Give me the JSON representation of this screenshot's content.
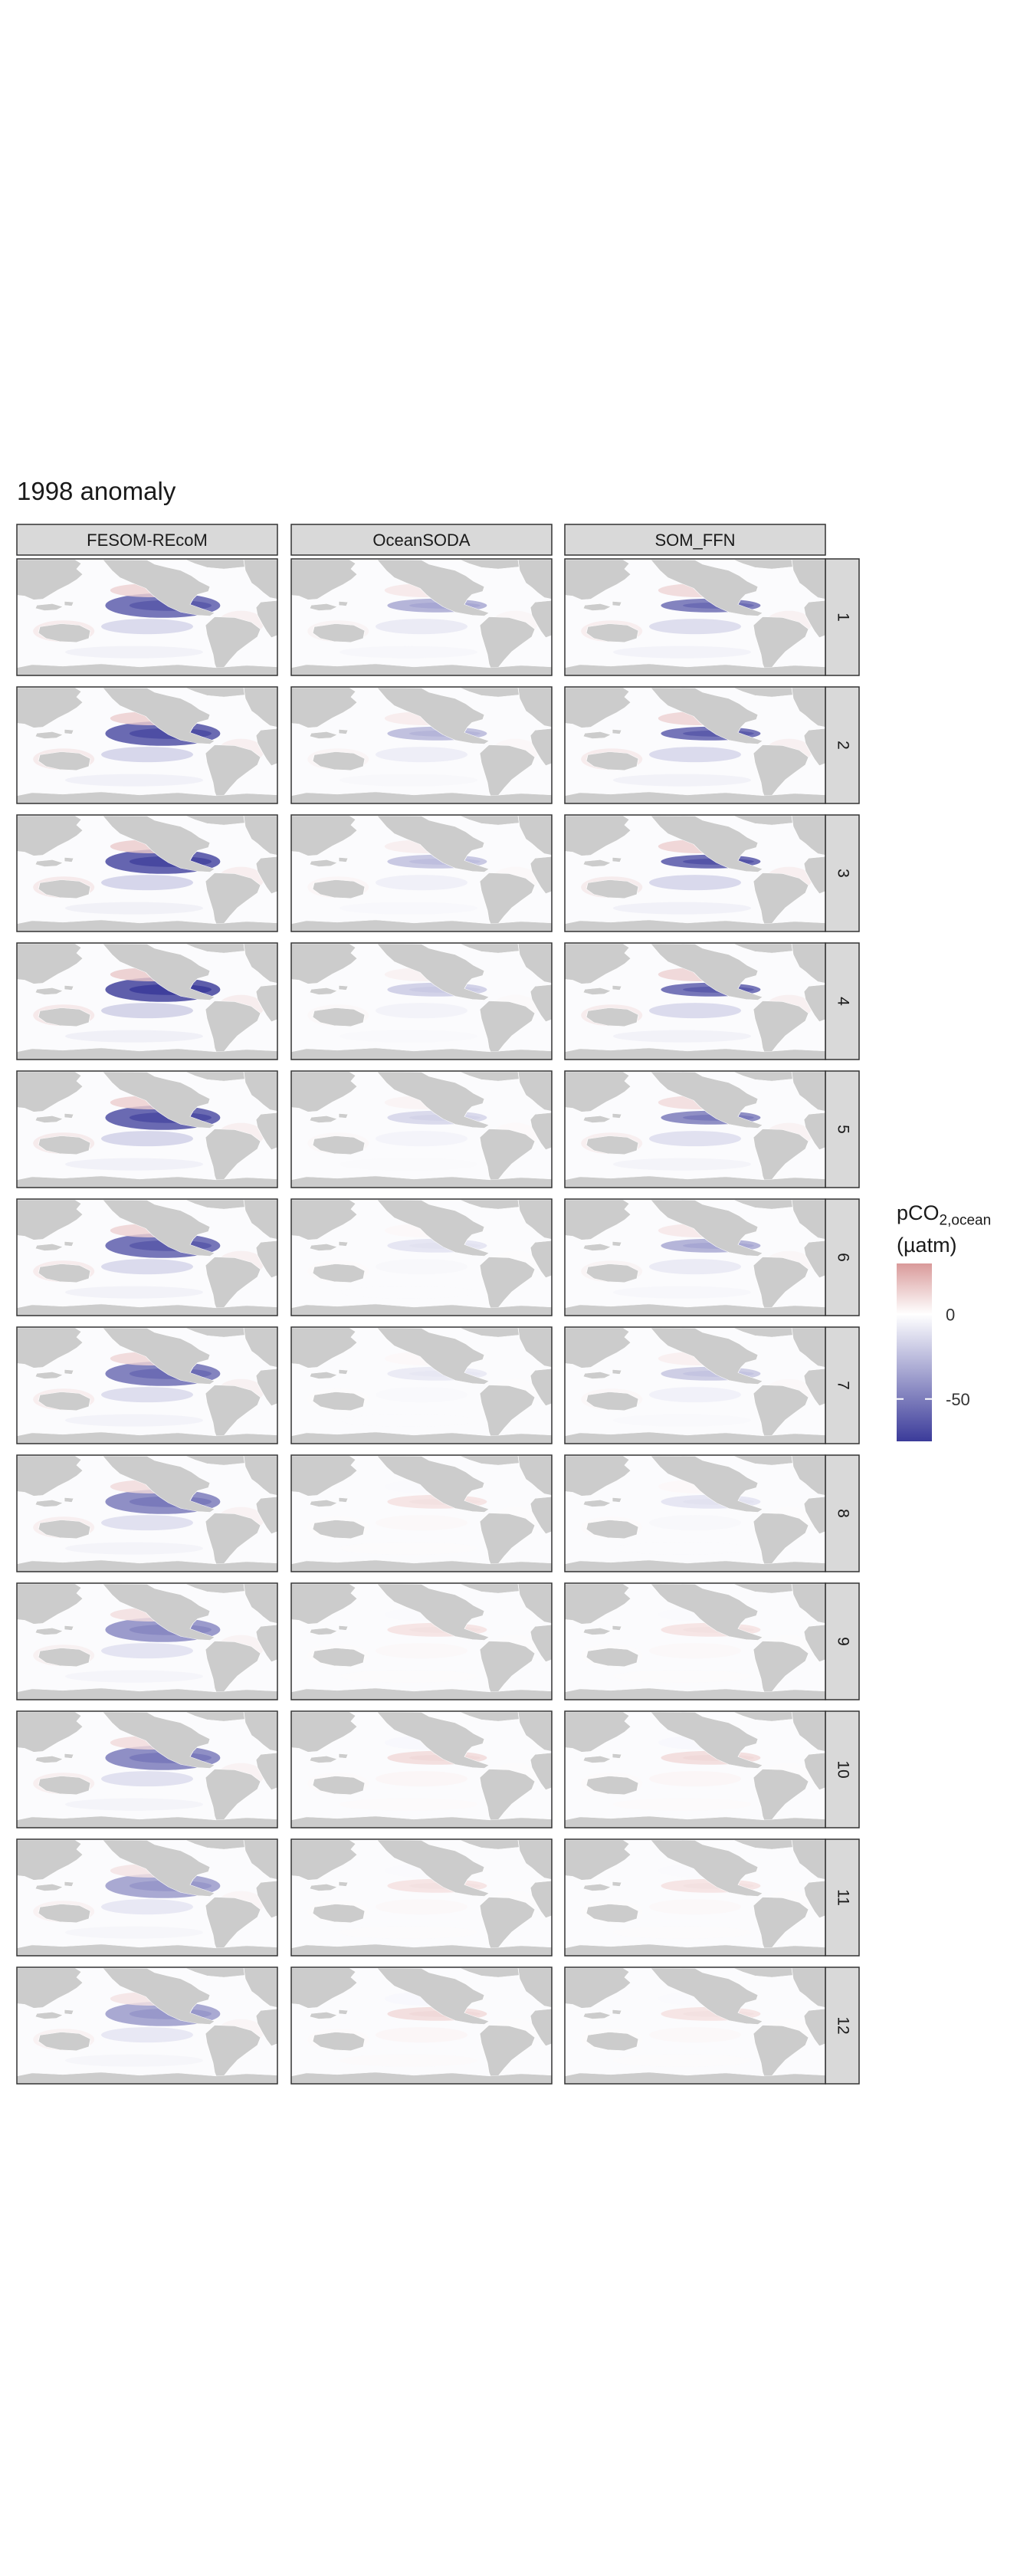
{
  "chart_data": {
    "type": "heatmap",
    "title": "1998 anomaly",
    "facet_columns": [
      "FESOM-REcoM",
      "OceanSODA",
      "SOM_FFN"
    ],
    "facet_rows": [
      "1",
      "2",
      "3",
      "4",
      "5",
      "6",
      "7",
      "8",
      "9",
      "10",
      "11",
      "12"
    ],
    "legend": {
      "title_main": "pCO",
      "title_sub": "2,ocean",
      "title_units": "(µatm)",
      "ticks": [
        0,
        -50
      ],
      "tick_labels": [
        "0",
        "-50"
      ],
      "range": [
        -75,
        30
      ],
      "colors": {
        "low": "#3b3b9a",
        "mid": "#ffffff",
        "high": "#d99a9a"
      },
      "placement": "right"
    },
    "land_color": "#cccccc",
    "equatorial_pacific_anomaly_min": {
      "FESOM-REcoM": [
        -55,
        -60,
        -62,
        -65,
        -60,
        -55,
        -50,
        -45,
        -40,
        -45,
        -35,
        -35
      ],
      "OceanSODA": [
        -30,
        -25,
        -22,
        -18,
        -15,
        -10,
        -8,
        8,
        8,
        10,
        8,
        10
      ],
      "SOM_FFN": [
        -50,
        -55,
        -58,
        -55,
        -45,
        -30,
        -20,
        -10,
        8,
        10,
        8,
        8
      ]
    }
  }
}
